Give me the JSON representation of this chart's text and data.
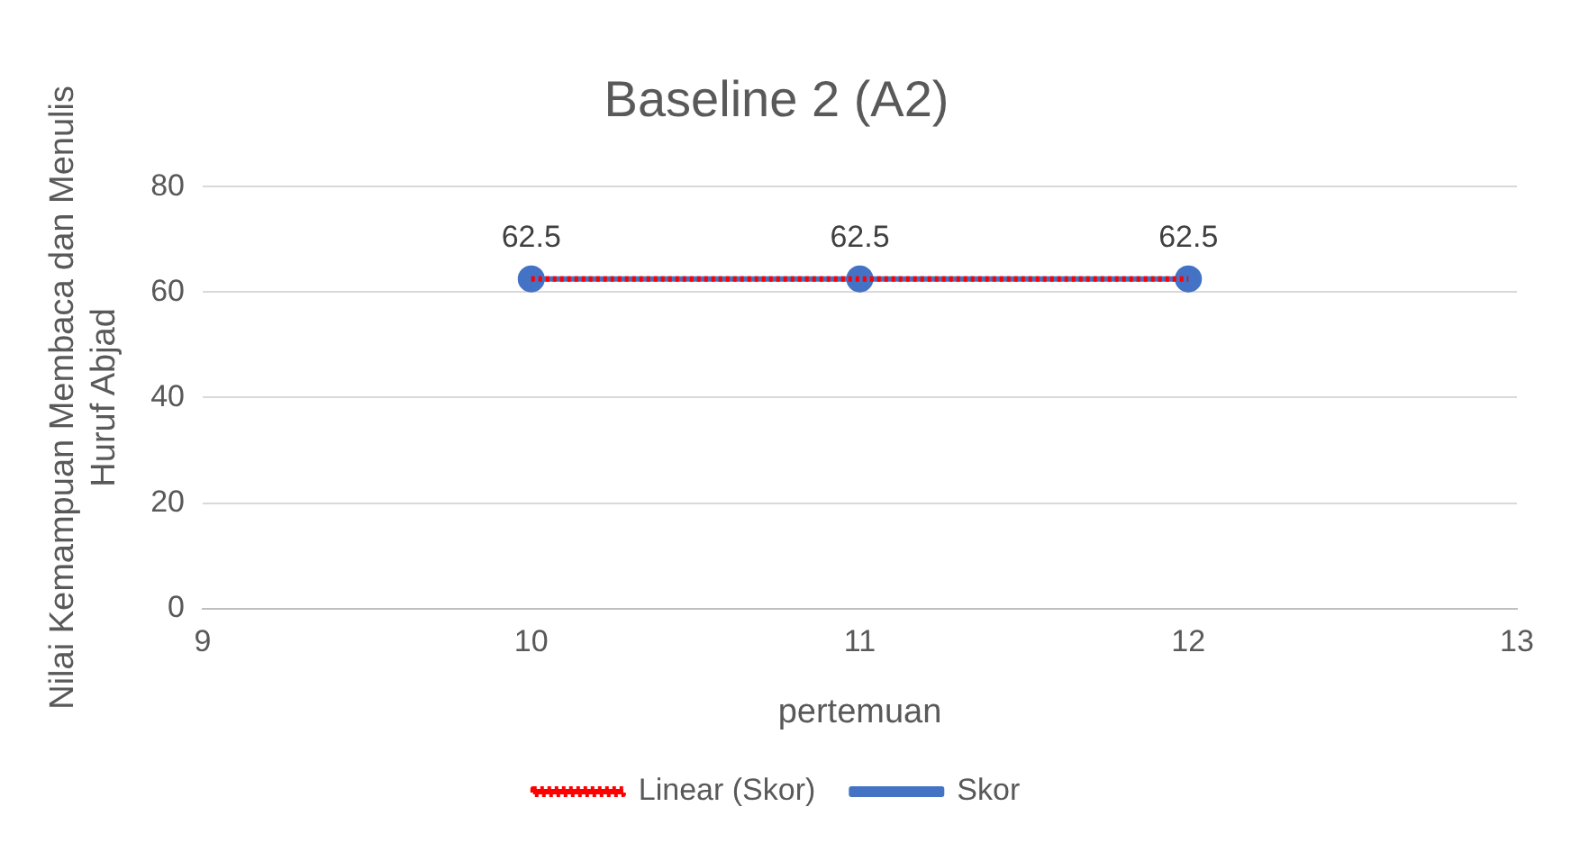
{
  "chart_data": {
    "type": "line",
    "title": "Baseline 2 (A2)",
    "xlabel": "pertemuan",
    "ylabel": "Nilai Kemampuan Membaca dan Menulis Huruf Abjad",
    "x": [
      10,
      11,
      12
    ],
    "series": [
      {
        "name": "Skor",
        "color": "#4472c4",
        "values": [
          62.5,
          62.5,
          62.5
        ],
        "marker": "circle",
        "line_style": "solid",
        "value_labels": [
          "62.5",
          "62.5",
          "62.5"
        ]
      },
      {
        "name": "Linear (Skor)",
        "color": "#ff0000",
        "values": [
          62.5,
          62.5,
          62.5
        ],
        "marker": "none",
        "line_style": "dotted"
      }
    ],
    "xlim": [
      9,
      13
    ],
    "xticks": [
      9,
      10,
      11,
      12,
      13
    ],
    "ylim": [
      0,
      80
    ],
    "yticks": [
      0,
      20,
      40,
      60,
      80
    ],
    "grid": "y",
    "legend": "bottom"
  }
}
